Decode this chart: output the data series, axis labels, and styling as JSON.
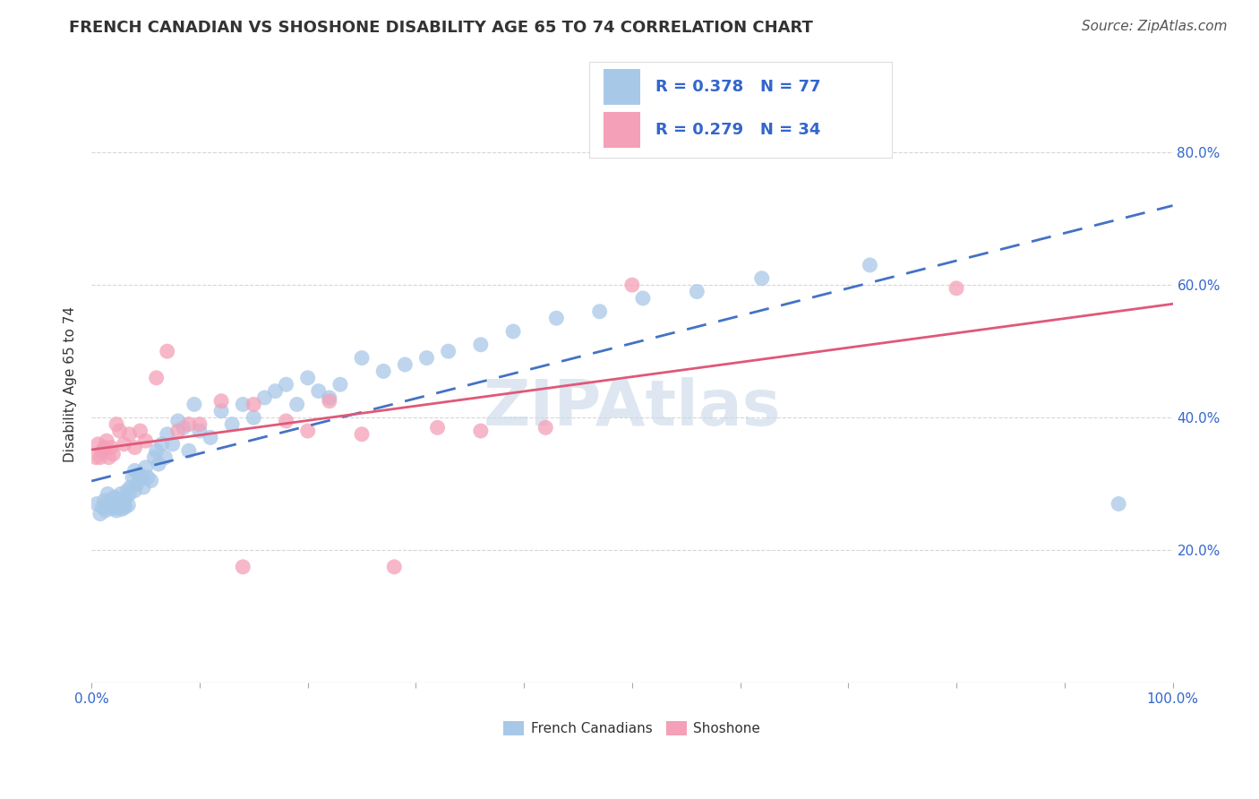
{
  "title": "FRENCH CANADIAN VS SHOSHONE DISABILITY AGE 65 TO 74 CORRELATION CHART",
  "source": "Source: ZipAtlas.com",
  "ylabel": "Disability Age 65 to 74",
  "xlim": [
    0.0,
    1.0
  ],
  "ylim": [
    0.0,
    0.9
  ],
  "french_R": "0.378",
  "french_N": "77",
  "shoshone_R": "0.279",
  "shoshone_N": "34",
  "french_color": "#a8c8e8",
  "french_line_color": "#4472c4",
  "shoshone_color": "#f4a0b8",
  "shoshone_line_color": "#e05878",
  "watermark": "ZIPAtlas",
  "french_scatter_x": [
    0.005,
    0.008,
    0.01,
    0.012,
    0.013,
    0.015,
    0.015,
    0.016,
    0.018,
    0.019,
    0.02,
    0.021,
    0.022,
    0.022,
    0.023,
    0.024,
    0.025,
    0.026,
    0.027,
    0.028,
    0.029,
    0.03,
    0.031,
    0.032,
    0.033,
    0.034,
    0.035,
    0.036,
    0.038,
    0.04,
    0.04,
    0.042,
    0.044,
    0.046,
    0.048,
    0.05,
    0.052,
    0.055,
    0.058,
    0.06,
    0.062,
    0.065,
    0.068,
    0.07,
    0.075,
    0.08,
    0.085,
    0.09,
    0.095,
    0.1,
    0.11,
    0.12,
    0.13,
    0.14,
    0.15,
    0.16,
    0.17,
    0.18,
    0.19,
    0.2,
    0.21,
    0.22,
    0.23,
    0.25,
    0.27,
    0.29,
    0.31,
    0.33,
    0.36,
    0.39,
    0.43,
    0.47,
    0.51,
    0.56,
    0.62,
    0.72,
    0.95
  ],
  "french_scatter_y": [
    0.27,
    0.255,
    0.265,
    0.275,
    0.26,
    0.27,
    0.285,
    0.268,
    0.275,
    0.263,
    0.272,
    0.28,
    0.268,
    0.278,
    0.26,
    0.265,
    0.275,
    0.272,
    0.285,
    0.262,
    0.278,
    0.268,
    0.265,
    0.28,
    0.29,
    0.268,
    0.285,
    0.295,
    0.31,
    0.29,
    0.32,
    0.3,
    0.315,
    0.31,
    0.295,
    0.325,
    0.31,
    0.305,
    0.34,
    0.35,
    0.33,
    0.36,
    0.34,
    0.375,
    0.36,
    0.395,
    0.385,
    0.35,
    0.42,
    0.38,
    0.37,
    0.41,
    0.39,
    0.42,
    0.4,
    0.43,
    0.44,
    0.45,
    0.42,
    0.46,
    0.44,
    0.43,
    0.45,
    0.49,
    0.47,
    0.48,
    0.49,
    0.5,
    0.51,
    0.53,
    0.55,
    0.56,
    0.58,
    0.59,
    0.61,
    0.63,
    0.27
  ],
  "shoshone_scatter_x": [
    0.004,
    0.006,
    0.008,
    0.01,
    0.012,
    0.014,
    0.016,
    0.018,
    0.02,
    0.023,
    0.026,
    0.03,
    0.035,
    0.04,
    0.045,
    0.05,
    0.06,
    0.07,
    0.08,
    0.09,
    0.1,
    0.12,
    0.14,
    0.15,
    0.18,
    0.2,
    0.22,
    0.25,
    0.28,
    0.32,
    0.36,
    0.42,
    0.5,
    0.8
  ],
  "shoshone_scatter_y": [
    0.34,
    0.36,
    0.34,
    0.35,
    0.355,
    0.365,
    0.34,
    0.355,
    0.345,
    0.39,
    0.38,
    0.36,
    0.375,
    0.355,
    0.38,
    0.365,
    0.46,
    0.5,
    0.38,
    0.39,
    0.39,
    0.425,
    0.175,
    0.42,
    0.395,
    0.38,
    0.425,
    0.375,
    0.175,
    0.385,
    0.38,
    0.385,
    0.6,
    0.595
  ],
  "bg_color": "#ffffff",
  "grid_color": "#cccccc",
  "title_fontsize": 13,
  "axis_label_fontsize": 11,
  "tick_fontsize": 11,
  "source_fontsize": 11,
  "watermark_color": "#c8d8e8",
  "watermark_fontsize": 52,
  "legend_fontsize": 13
}
